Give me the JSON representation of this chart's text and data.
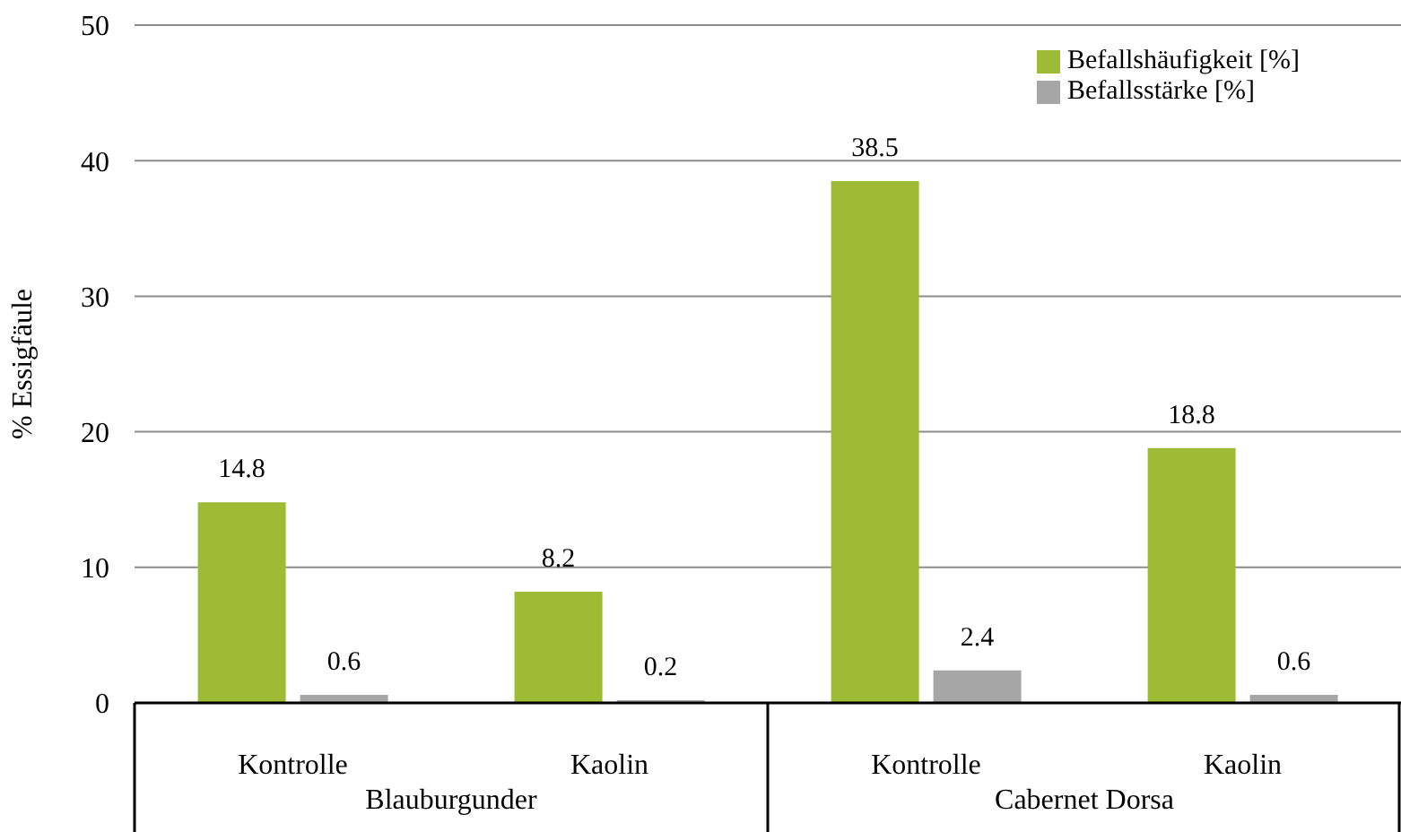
{
  "chart_data": {
    "type": "bar",
    "ylabel": "% Essigfäule",
    "categories": [
      "Kontrolle",
      "Kaolin",
      "Kontrolle",
      "Kaolin"
    ],
    "series": [
      {
        "name": "Befallshäufigkeit [%]",
        "color": "#9dbb34",
        "values": [
          14.8,
          8.2,
          38.5,
          18.8
        ]
      },
      {
        "name": "Befallsstärke [%]",
        "color": "#a6a6a6",
        "values": [
          0.6,
          0.2,
          2.4,
          0.6
        ]
      }
    ],
    "annotations": [
      "Blauburgunder",
      "Cabernet Dorsa"
    ],
    "ylim": [
      0,
      50
    ],
    "yticks": [
      0,
      10,
      20,
      30,
      40,
      50
    ],
    "grid": "y",
    "legend": "top right",
    "data_labels": true
  }
}
